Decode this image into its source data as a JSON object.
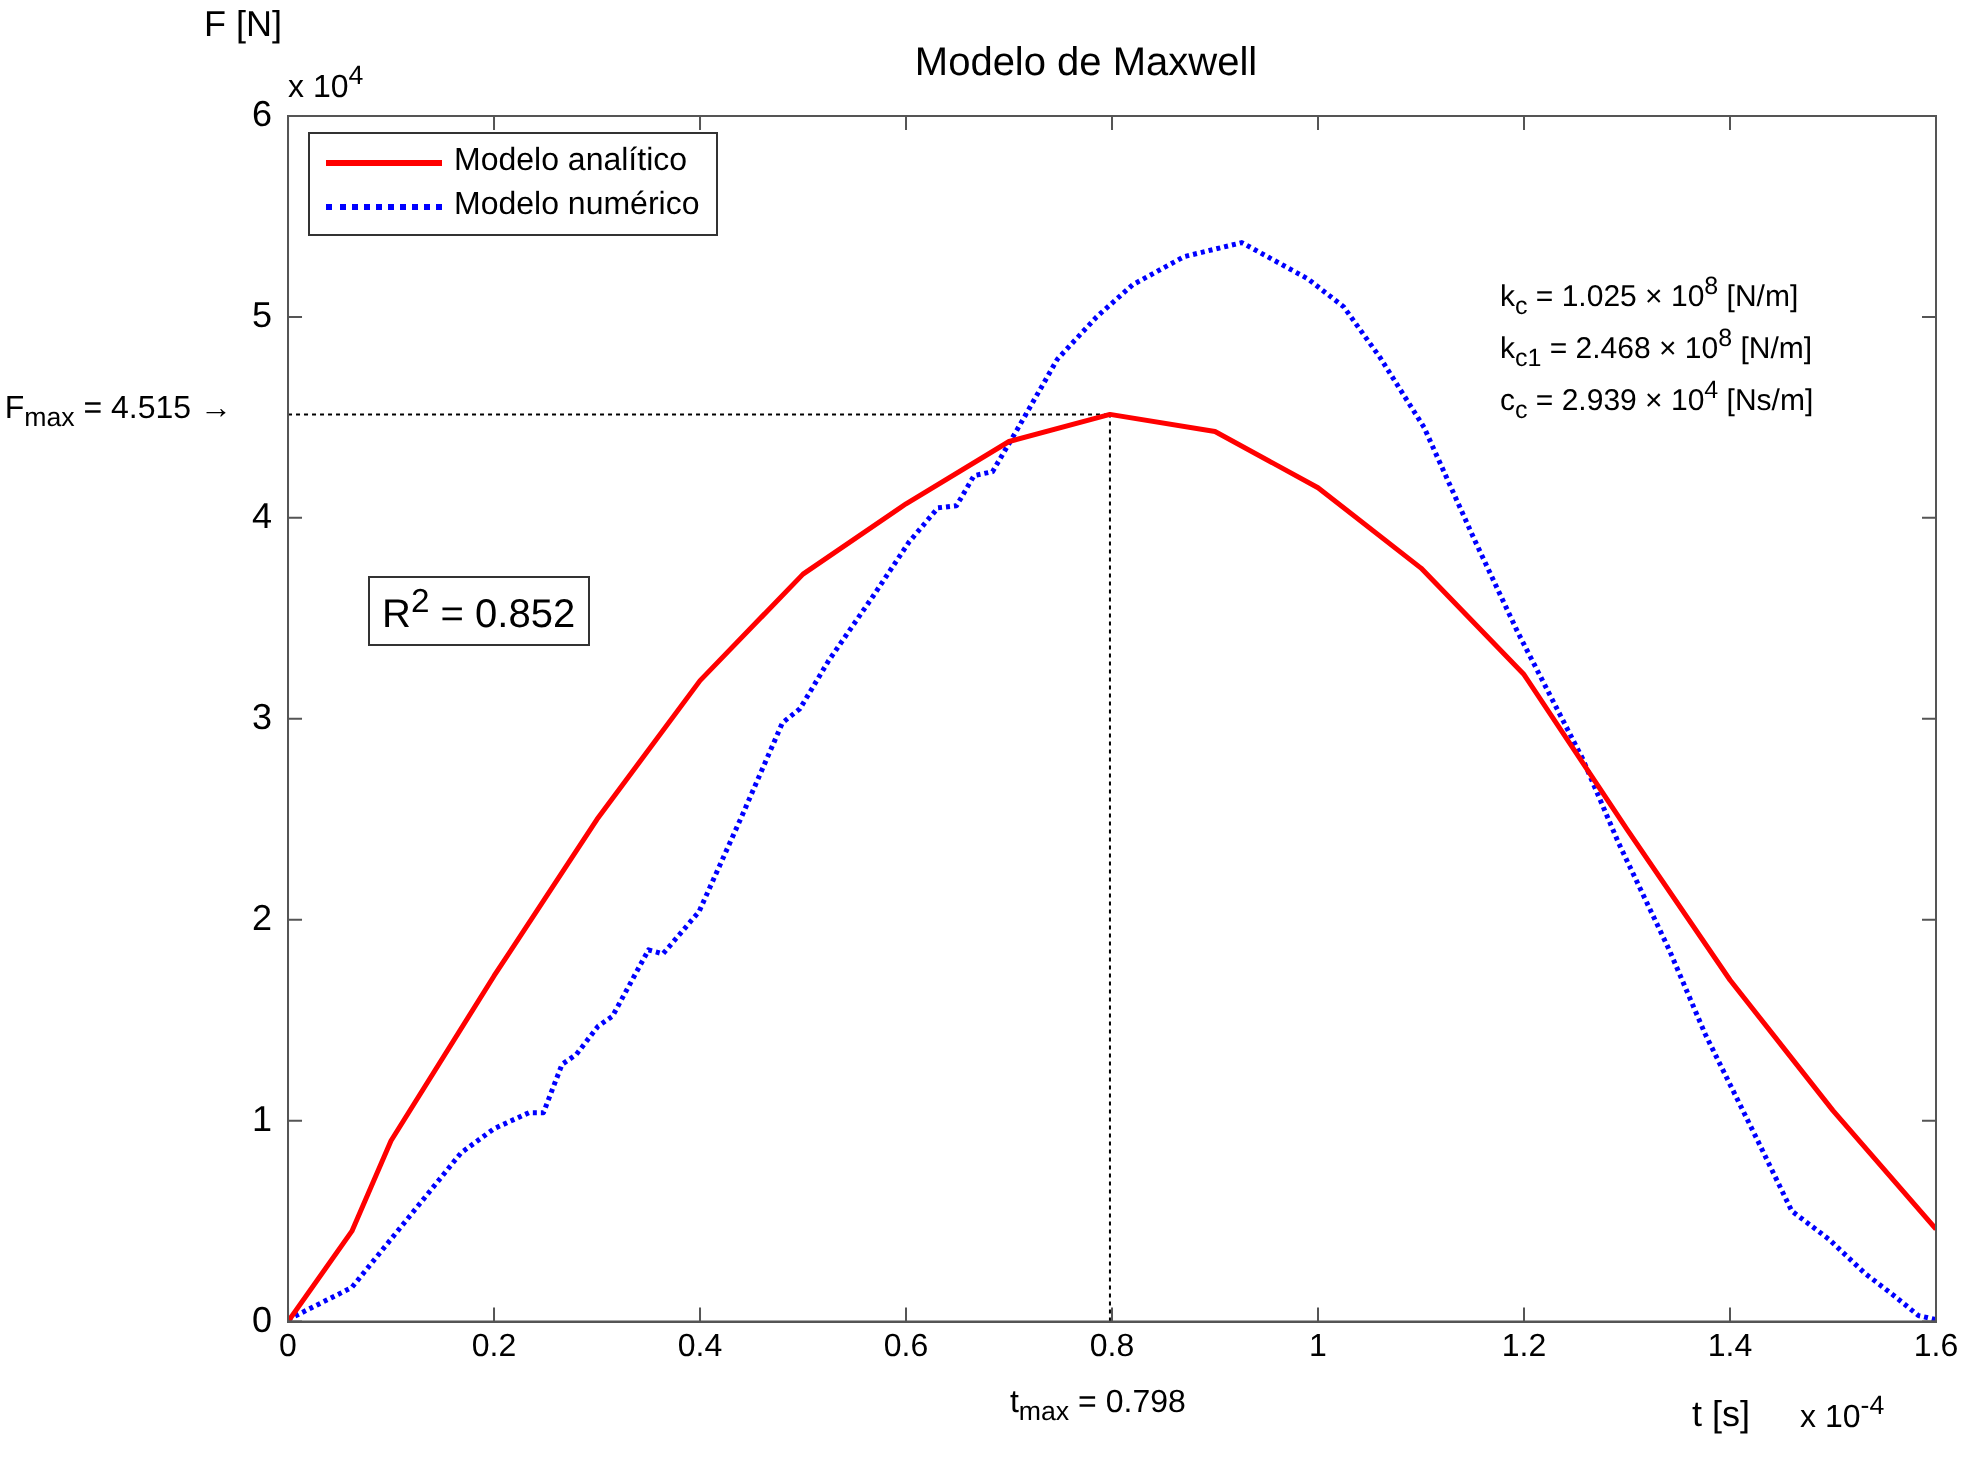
{
  "chart_data": {
    "type": "line",
    "title": "Modelo de Maxwell",
    "xlabel": "t [s]",
    "ylabel": "F [N]",
    "xlim": [
      0,
      1.6
    ],
    "xticks": [
      0,
      0.2,
      0.4,
      0.6,
      0.8,
      1,
      1.2,
      1.4,
      1.6
    ],
    "ylim": [
      0,
      6
    ],
    "yticks": [
      0,
      1,
      2,
      3,
      4,
      5,
      6
    ],
    "grid": false,
    "legend": "top left",
    "series": [
      {
        "name": "Modelo analítico",
        "color": "#ff0000",
        "line_style": "solid",
        "x": [
          0,
          0.062,
          0.1,
          0.2,
          0.3,
          0.4,
          0.5,
          0.6,
          0.7,
          0.798,
          0.9,
          1.0,
          1.1,
          1.2,
          1.3,
          1.4,
          1.5,
          1.6
        ],
        "values": [
          0,
          0.45,
          0.9,
          1.72,
          2.5,
          3.19,
          3.72,
          4.07,
          4.38,
          4.515,
          4.43,
          4.15,
          3.75,
          3.22,
          2.45,
          1.7,
          1.05,
          0.46
        ]
      },
      {
        "name": "Modelo numérico",
        "color": "#0000ff",
        "line_style": "dotted",
        "x": [
          0,
          0.062,
          0.168,
          0.2,
          0.234,
          0.248,
          0.266,
          0.28,
          0.301,
          0.315,
          0.35,
          0.364,
          0.399,
          0.441,
          0.48,
          0.497,
          0.525,
          0.568,
          0.603,
          0.631,
          0.649,
          0.666,
          0.684,
          0.708,
          0.747,
          0.785,
          0.82,
          0.87,
          0.926,
          0.99,
          1.025,
          1.06,
          1.103,
          1.152,
          1.194,
          1.257,
          1.292,
          1.341,
          1.376,
          1.426,
          1.46,
          1.496,
          1.531,
          1.559,
          1.583,
          1.6
        ],
        "values": [
          0.01,
          0.17,
          0.84,
          0.96,
          1.04,
          1.04,
          1.28,
          1.33,
          1.47,
          1.52,
          1.85,
          1.83,
          2.04,
          2.52,
          2.98,
          3.05,
          3.29,
          3.61,
          3.88,
          4.05,
          4.06,
          4.21,
          4.23,
          4.44,
          4.79,
          5.0,
          5.16,
          5.3,
          5.37,
          5.19,
          5.05,
          4.8,
          4.45,
          3.89,
          3.43,
          2.8,
          2.38,
          1.85,
          1.43,
          0.91,
          0.55,
          0.41,
          0.24,
          0.13,
          0.03,
          0.01
        ]
      }
    ],
    "ref_lines": [
      {
        "axis": "y",
        "value": 4.515,
        "label": "F$_{max}$ = 4.515 →",
        "line_style": "dotted",
        "color": "#000000"
      },
      {
        "axis": "x",
        "value": 0.798,
        "label": "t$_{max}$ = 0.798",
        "line_style": "dotted",
        "color": "#000000"
      }
    ],
    "annotations": [
      "x 10$^{4}$",
      "x 10$^{-4}$",
      "k$_{c}$ = 1.025 × 10$^{8}$ [N/m]",
      "k$_{c1}$ = 2.468 × 10$^{8}$ [N/m]",
      "c$_{c}$ = 2.939 × 10$^{4}$ [Ns/m]",
      "R$^{2}$ =  0.852"
    ]
  }
}
